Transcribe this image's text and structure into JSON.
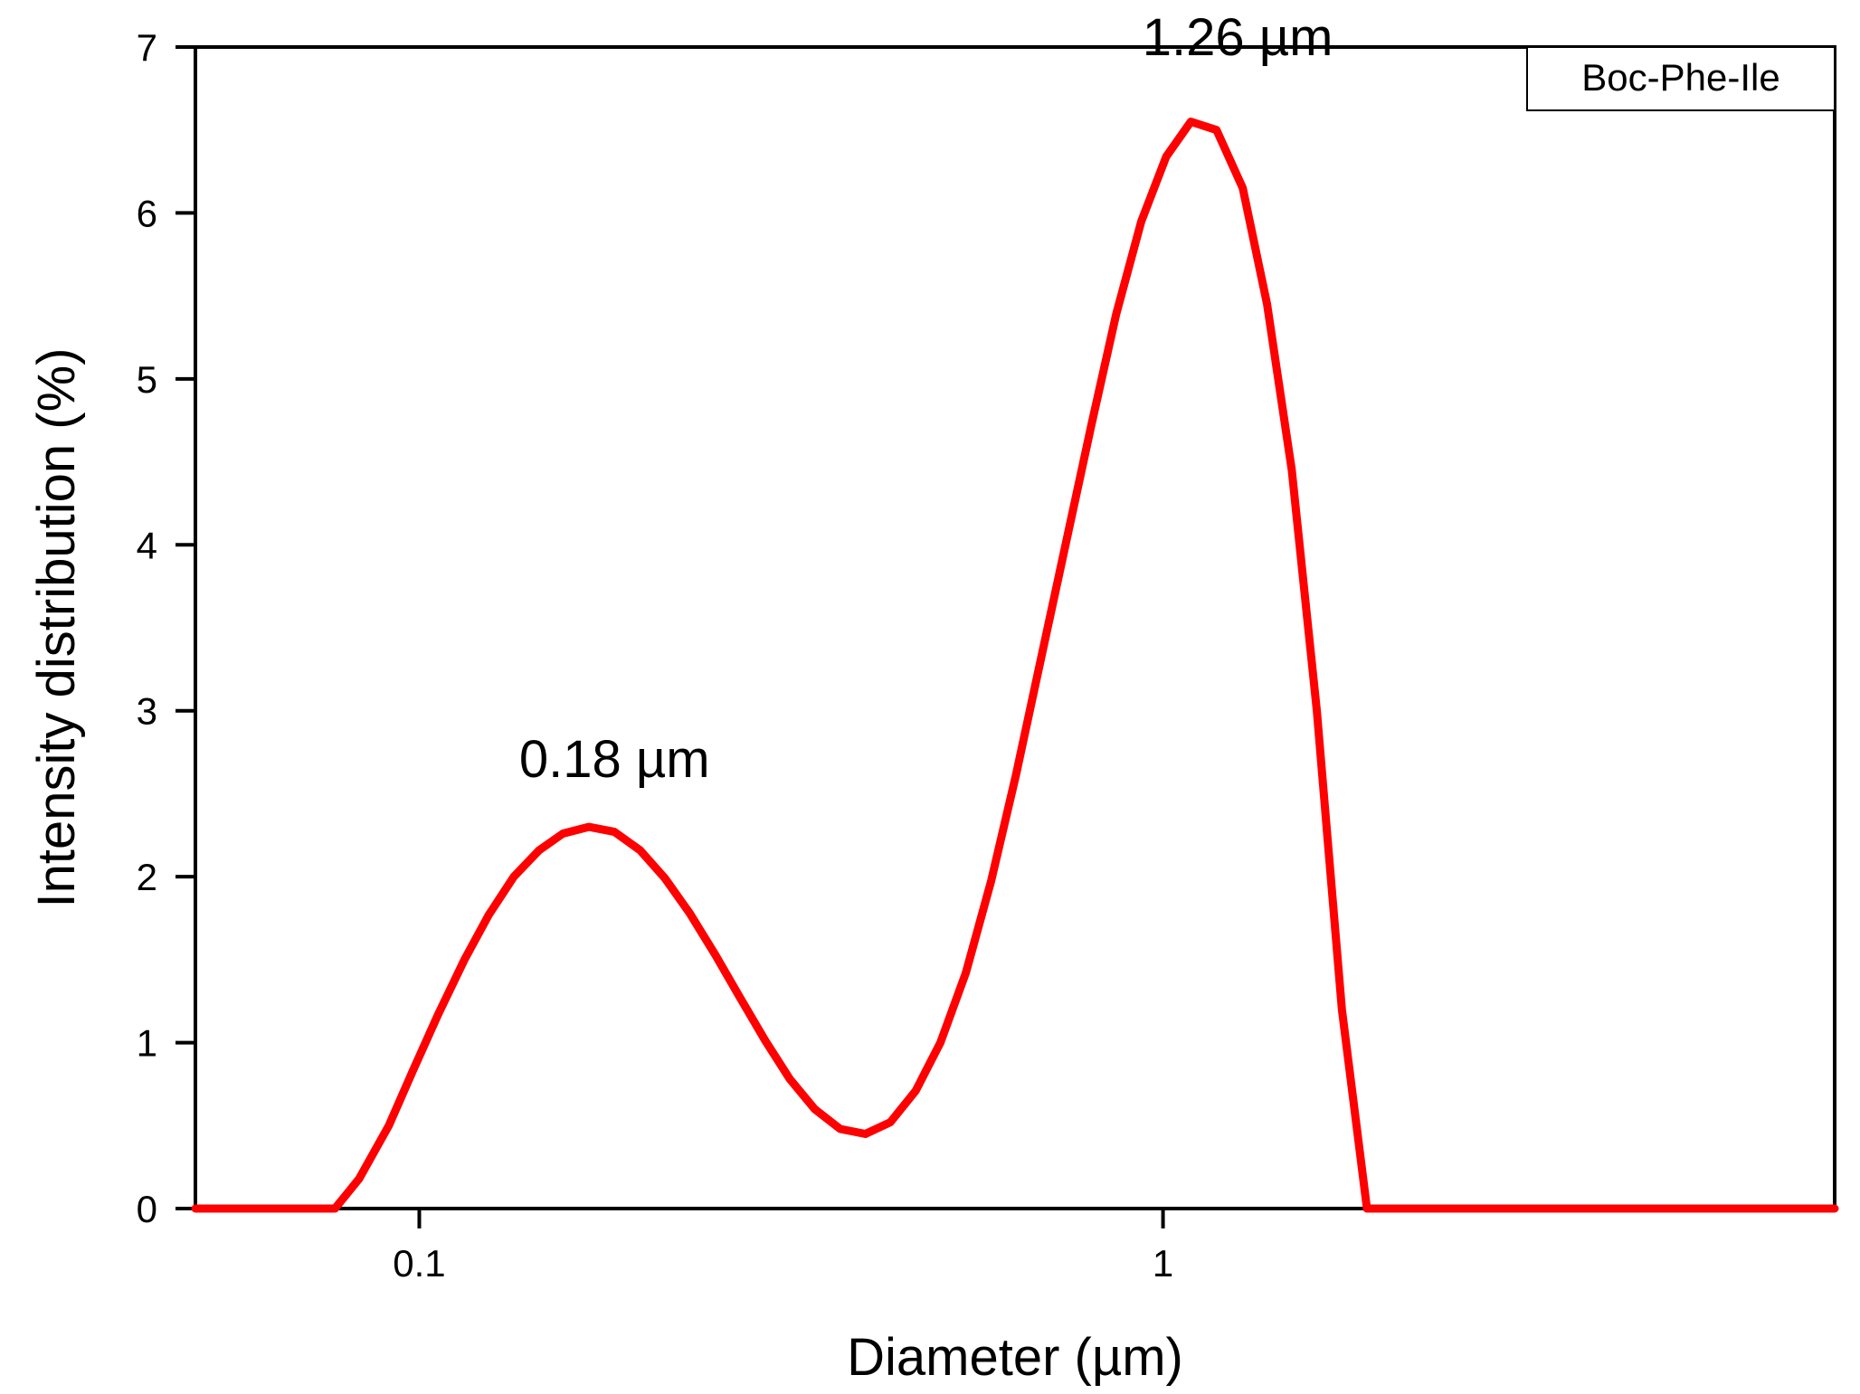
{
  "chart_data": {
    "type": "line",
    "title": "",
    "xlabel": "Diameter (µm)",
    "ylabel": "Intensity distribution (%)",
    "xscale": "log",
    "xlim": [
      0.05,
      8
    ],
    "ylim": [
      0,
      7
    ],
    "xticks": [
      0.1,
      1
    ],
    "xtick_labels": [
      "0.1",
      "1"
    ],
    "yticks": [
      0,
      1,
      2,
      3,
      4,
      5,
      6,
      7
    ],
    "ytick_labels": [
      "0",
      "1",
      "2",
      "3",
      "4",
      "5",
      "6",
      "7"
    ],
    "grid": false,
    "legend": {
      "placement": "top-right",
      "entries": [
        "Boc-Phe-Ile"
      ]
    },
    "series": [
      {
        "name": "Boc-Phe-Ile",
        "color": "#ff0000",
        "x": [
          0.05,
          0.077,
          0.083,
          0.091,
          0.098,
          0.106,
          0.115,
          0.124,
          0.134,
          0.145,
          0.156,
          0.169,
          0.183,
          0.198,
          0.214,
          0.231,
          0.25,
          0.27,
          0.292,
          0.315,
          0.34,
          0.368,
          0.398,
          0.43,
          0.465,
          0.502,
          0.543,
          0.587,
          0.634,
          0.685,
          0.741,
          0.801,
          0.865,
          0.935,
          1.01,
          1.09,
          1.18,
          1.28,
          1.38,
          1.49,
          1.61,
          1.74,
          1.88,
          2.03,
          2.2,
          2.38,
          8
        ],
        "y": [
          0,
          0,
          0.18,
          0.5,
          0.83,
          1.17,
          1.5,
          1.77,
          2.0,
          2.16,
          2.26,
          2.3,
          2.27,
          2.16,
          1.99,
          1.78,
          1.53,
          1.27,
          1.01,
          0.78,
          0.6,
          0.48,
          0.45,
          0.52,
          0.71,
          1.0,
          1.42,
          1.97,
          2.61,
          3.31,
          4.02,
          4.72,
          5.39,
          5.95,
          6.34,
          6.55,
          6.5,
          6.15,
          5.45,
          4.45,
          3.0,
          1.2,
          0.0,
          0.0,
          0.0,
          0.0,
          0
        ]
      }
    ],
    "annotations": [
      {
        "text": "0.18 µm",
        "x": 0.183,
        "y": 2.6
      },
      {
        "text": "1.26 µm",
        "x": 1.26,
        "y": 6.95
      }
    ]
  }
}
